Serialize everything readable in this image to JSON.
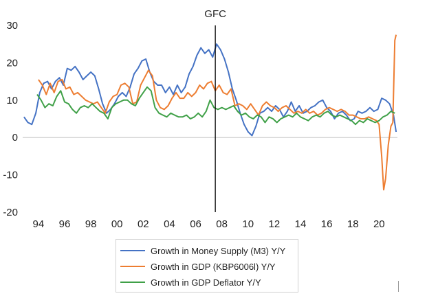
{
  "chart_data": {
    "type": "line",
    "title": "",
    "xlabel": "",
    "ylabel": "",
    "ylim": [
      -20,
      30
    ],
    "yticks": [
      -20,
      -10,
      0,
      10,
      20,
      30
    ],
    "xlim": [
      1992.8,
      2021.4
    ],
    "xticks": [
      {
        "value": 1994,
        "label": "94"
      },
      {
        "value": 1996,
        "label": "96"
      },
      {
        "value": 1998,
        "label": "98"
      },
      {
        "value": 2000,
        "label": "00"
      },
      {
        "value": 2002,
        "label": "02"
      },
      {
        "value": 2004,
        "label": "04"
      },
      {
        "value": 2006,
        "label": "06"
      },
      {
        "value": 2008,
        "label": "08"
      },
      {
        "value": 2010,
        "label": "10"
      },
      {
        "value": 2012,
        "label": "12"
      },
      {
        "value": 2014,
        "label": "14"
      },
      {
        "value": 2016,
        "label": "16"
      },
      {
        "value": 2018,
        "label": "18"
      },
      {
        "value": 2020,
        "label": "20"
      }
    ],
    "grid": false,
    "legend_position": "bottom-center",
    "annotations": [
      {
        "label": "GFC",
        "x": 2007.5
      }
    ],
    "series": [
      {
        "name": "Growth in Money Supply (M3) Y/Y",
        "color": "#4472c4",
        "points": [
          [
            1992.9,
            5.5
          ],
          [
            1993.2,
            4.0
          ],
          [
            1993.5,
            3.5
          ],
          [
            1993.8,
            6.5
          ],
          [
            1994.1,
            12.0
          ],
          [
            1994.4,
            14.5
          ],
          [
            1994.7,
            15.0
          ],
          [
            1995.0,
            13.0
          ],
          [
            1995.3,
            15.0
          ],
          [
            1995.6,
            16.0
          ],
          [
            1995.9,
            14.0
          ],
          [
            1996.2,
            18.5
          ],
          [
            1996.5,
            18.0
          ],
          [
            1996.8,
            19.0
          ],
          [
            1997.1,
            17.5
          ],
          [
            1997.4,
            15.5
          ],
          [
            1997.7,
            16.5
          ],
          [
            1998.0,
            17.5
          ],
          [
            1998.3,
            16.5
          ],
          [
            1998.6,
            13.0
          ],
          [
            1998.9,
            9.0
          ],
          [
            1999.2,
            6.5
          ],
          [
            1999.5,
            7.5
          ],
          [
            1999.8,
            9.0
          ],
          [
            2000.1,
            11.0
          ],
          [
            2000.4,
            12.0
          ],
          [
            2000.7,
            11.0
          ],
          [
            2001.0,
            13.5
          ],
          [
            2001.3,
            17.0
          ],
          [
            2001.6,
            18.5
          ],
          [
            2001.9,
            20.5
          ],
          [
            2002.2,
            21.0
          ],
          [
            2002.5,
            17.5
          ],
          [
            2002.8,
            15.0
          ],
          [
            2003.1,
            14.0
          ],
          [
            2003.4,
            14.0
          ],
          [
            2003.7,
            12.0
          ],
          [
            2004.0,
            13.5
          ],
          [
            2004.3,
            11.5
          ],
          [
            2004.6,
            14.0
          ],
          [
            2004.9,
            12.0
          ],
          [
            2005.2,
            13.5
          ],
          [
            2005.5,
            17.0
          ],
          [
            2005.8,
            19.0
          ],
          [
            2006.1,
            22.0
          ],
          [
            2006.4,
            24.0
          ],
          [
            2006.7,
            22.5
          ],
          [
            2007.0,
            23.5
          ],
          [
            2007.3,
            21.5
          ],
          [
            2007.6,
            25.0
          ],
          [
            2007.9,
            23.5
          ],
          [
            2008.2,
            21.0
          ],
          [
            2008.5,
            17.5
          ],
          [
            2008.8,
            13.0
          ],
          [
            2009.1,
            10.0
          ],
          [
            2009.4,
            6.5
          ],
          [
            2009.7,
            3.5
          ],
          [
            2010.0,
            1.5
          ],
          [
            2010.3,
            0.5
          ],
          [
            2010.6,
            3.0
          ],
          [
            2010.9,
            6.5
          ],
          [
            2011.2,
            7.0
          ],
          [
            2011.5,
            8.0
          ],
          [
            2011.8,
            7.0
          ],
          [
            2012.1,
            8.5
          ],
          [
            2012.4,
            7.5
          ],
          [
            2012.7,
            5.5
          ],
          [
            2013.0,
            7.0
          ],
          [
            2013.3,
            9.5
          ],
          [
            2013.6,
            7.0
          ],
          [
            2013.9,
            8.5
          ],
          [
            2014.2,
            6.5
          ],
          [
            2014.5,
            7.0
          ],
          [
            2014.8,
            8.0
          ],
          [
            2015.1,
            8.5
          ],
          [
            2015.4,
            9.5
          ],
          [
            2015.7,
            10.0
          ],
          [
            2016.0,
            8.0
          ],
          [
            2016.3,
            7.0
          ],
          [
            2016.6,
            5.0
          ],
          [
            2016.9,
            6.5
          ],
          [
            2017.2,
            7.0
          ],
          [
            2017.5,
            6.0
          ],
          [
            2017.8,
            4.5
          ],
          [
            2018.1,
            5.0
          ],
          [
            2018.4,
            7.0
          ],
          [
            2018.7,
            6.5
          ],
          [
            2019.0,
            7.0
          ],
          [
            2019.3,
            8.0
          ],
          [
            2019.6,
            7.0
          ],
          [
            2019.9,
            7.5
          ],
          [
            2020.2,
            10.5
          ],
          [
            2020.5,
            10.0
          ],
          [
            2020.8,
            9.0
          ],
          [
            2021.1,
            6.0
          ],
          [
            2021.3,
            1.5
          ]
        ]
      },
      {
        "name": "Growth in GDP (KBP6006l) Y/Y",
        "color": "#ed7d31",
        "points": [
          [
            1994.0,
            15.5
          ],
          [
            1994.3,
            14.0
          ],
          [
            1994.6,
            11.5
          ],
          [
            1994.9,
            14.5
          ],
          [
            1995.2,
            12.0
          ],
          [
            1995.5,
            15.0
          ],
          [
            1995.8,
            15.5
          ],
          [
            1996.1,
            13.0
          ],
          [
            1996.4,
            13.5
          ],
          [
            1996.7,
            11.5
          ],
          [
            1997.0,
            12.0
          ],
          [
            1997.3,
            11.0
          ],
          [
            1997.6,
            10.0
          ],
          [
            1997.9,
            9.5
          ],
          [
            1998.2,
            9.0
          ],
          [
            1998.5,
            9.5
          ],
          [
            1998.8,
            8.0
          ],
          [
            1999.1,
            6.5
          ],
          [
            1999.4,
            9.5
          ],
          [
            1999.7,
            11.0
          ],
          [
            2000.0,
            11.5
          ],
          [
            2000.3,
            14.0
          ],
          [
            2000.6,
            14.5
          ],
          [
            2000.9,
            13.5
          ],
          [
            2001.2,
            9.0
          ],
          [
            2001.5,
            9.5
          ],
          [
            2001.8,
            14.0
          ],
          [
            2002.1,
            16.0
          ],
          [
            2002.4,
            18.0
          ],
          [
            2002.7,
            16.5
          ],
          [
            2003.0,
            10.0
          ],
          [
            2003.3,
            8.0
          ],
          [
            2003.6,
            7.5
          ],
          [
            2003.9,
            8.5
          ],
          [
            2004.2,
            10.5
          ],
          [
            2004.5,
            12.0
          ],
          [
            2004.8,
            10.5
          ],
          [
            2005.1,
            10.5
          ],
          [
            2005.4,
            12.0
          ],
          [
            2005.7,
            11.0
          ],
          [
            2006.0,
            12.0
          ],
          [
            2006.3,
            14.0
          ],
          [
            2006.6,
            13.0
          ],
          [
            2006.9,
            14.5
          ],
          [
            2007.2,
            15.0
          ],
          [
            2007.5,
            12.5
          ],
          [
            2007.8,
            14.0
          ],
          [
            2008.1,
            12.0
          ],
          [
            2008.4,
            11.5
          ],
          [
            2008.7,
            13.0
          ],
          [
            2009.0,
            8.5
          ],
          [
            2009.3,
            9.0
          ],
          [
            2009.6,
            8.5
          ],
          [
            2009.9,
            7.5
          ],
          [
            2010.2,
            9.0
          ],
          [
            2010.5,
            7.5
          ],
          [
            2010.8,
            6.0
          ],
          [
            2011.1,
            8.5
          ],
          [
            2011.4,
            9.5
          ],
          [
            2011.7,
            8.5
          ],
          [
            2012.0,
            8.0
          ],
          [
            2012.3,
            7.0
          ],
          [
            2012.6,
            8.0
          ],
          [
            2012.9,
            8.5
          ],
          [
            2013.2,
            7.5
          ],
          [
            2013.5,
            6.5
          ],
          [
            2013.8,
            7.0
          ],
          [
            2014.1,
            6.5
          ],
          [
            2014.4,
            7.5
          ],
          [
            2014.7,
            6.5
          ],
          [
            2015.0,
            7.0
          ],
          [
            2015.3,
            6.0
          ],
          [
            2015.6,
            6.5
          ],
          [
            2015.9,
            7.5
          ],
          [
            2016.2,
            8.0
          ],
          [
            2016.5,
            7.5
          ],
          [
            2016.8,
            7.0
          ],
          [
            2017.1,
            7.5
          ],
          [
            2017.4,
            7.0
          ],
          [
            2017.7,
            6.0
          ],
          [
            2018.0,
            6.0
          ],
          [
            2018.3,
            5.5
          ],
          [
            2018.6,
            5.0
          ],
          [
            2018.9,
            5.0
          ],
          [
            2019.2,
            5.5
          ],
          [
            2019.5,
            5.0
          ],
          [
            2019.8,
            4.5
          ],
          [
            2020.0,
            3.5
          ],
          [
            2020.2,
            -5.0
          ],
          [
            2020.35,
            -14.0
          ],
          [
            2020.5,
            -11.0
          ],
          [
            2020.7,
            -2.0
          ],
          [
            2020.9,
            3.0
          ],
          [
            2021.05,
            4.0
          ],
          [
            2021.2,
            26.0
          ],
          [
            2021.3,
            27.5
          ]
        ]
      },
      {
        "name": "Growth in GDP Deflator Y/Y",
        "color": "#3fa047",
        "points": [
          [
            1993.9,
            11.5
          ],
          [
            1994.2,
            10.0
          ],
          [
            1994.5,
            8.0
          ],
          [
            1994.8,
            9.0
          ],
          [
            1995.1,
            8.5
          ],
          [
            1995.4,
            11.0
          ],
          [
            1995.7,
            12.5
          ],
          [
            1996.0,
            9.5
          ],
          [
            1996.3,
            9.0
          ],
          [
            1996.6,
            7.5
          ],
          [
            1996.9,
            6.5
          ],
          [
            1997.2,
            8.0
          ],
          [
            1997.5,
            8.5
          ],
          [
            1997.8,
            8.0
          ],
          [
            1998.1,
            9.0
          ],
          [
            1998.4,
            8.0
          ],
          [
            1998.7,
            7.0
          ],
          [
            1999.0,
            6.5
          ],
          [
            1999.3,
            5.0
          ],
          [
            1999.6,
            8.0
          ],
          [
            1999.9,
            9.0
          ],
          [
            2000.2,
            9.5
          ],
          [
            2000.5,
            10.0
          ],
          [
            2000.8,
            10.0
          ],
          [
            2001.1,
            9.0
          ],
          [
            2001.4,
            8.5
          ],
          [
            2001.7,
            10.5
          ],
          [
            2002.0,
            12.0
          ],
          [
            2002.3,
            13.5
          ],
          [
            2002.6,
            12.5
          ],
          [
            2002.9,
            8.0
          ],
          [
            2003.2,
            6.5
          ],
          [
            2003.5,
            6.0
          ],
          [
            2003.8,
            5.5
          ],
          [
            2004.1,
            6.5
          ],
          [
            2004.4,
            6.0
          ],
          [
            2004.7,
            5.5
          ],
          [
            2005.0,
            5.5
          ],
          [
            2005.3,
            6.0
          ],
          [
            2005.6,
            5.0
          ],
          [
            2005.9,
            5.5
          ],
          [
            2006.2,
            6.5
          ],
          [
            2006.5,
            5.5
          ],
          [
            2006.8,
            7.0
          ],
          [
            2007.1,
            10.0
          ],
          [
            2007.4,
            8.0
          ],
          [
            2007.7,
            7.5
          ],
          [
            2008.0,
            8.0
          ],
          [
            2008.3,
            7.5
          ],
          [
            2008.6,
            8.0
          ],
          [
            2008.9,
            8.5
          ],
          [
            2009.2,
            7.0
          ],
          [
            2009.5,
            6.0
          ],
          [
            2009.8,
            6.5
          ],
          [
            2010.1,
            5.5
          ],
          [
            2010.4,
            5.0
          ],
          [
            2010.7,
            6.0
          ],
          [
            2011.0,
            5.5
          ],
          [
            2011.3,
            4.0
          ],
          [
            2011.6,
            5.5
          ],
          [
            2011.9,
            5.0
          ],
          [
            2012.2,
            4.0
          ],
          [
            2012.5,
            5.0
          ],
          [
            2012.8,
            5.5
          ],
          [
            2013.1,
            6.0
          ],
          [
            2013.4,
            5.5
          ],
          [
            2013.7,
            6.5
          ],
          [
            2014.0,
            5.5
          ],
          [
            2014.3,
            5.0
          ],
          [
            2014.6,
            4.5
          ],
          [
            2014.9,
            5.5
          ],
          [
            2015.2,
            6.0
          ],
          [
            2015.5,
            5.5
          ],
          [
            2015.8,
            6.5
          ],
          [
            2016.1,
            7.0
          ],
          [
            2016.4,
            6.0
          ],
          [
            2016.7,
            5.5
          ],
          [
            2017.0,
            6.0
          ],
          [
            2017.3,
            5.5
          ],
          [
            2017.6,
            5.0
          ],
          [
            2017.9,
            4.5
          ],
          [
            2018.2,
            3.5
          ],
          [
            2018.5,
            4.5
          ],
          [
            2018.8,
            4.0
          ],
          [
            2019.1,
            5.0
          ],
          [
            2019.4,
            4.5
          ],
          [
            2019.7,
            4.0
          ],
          [
            2020.0,
            4.5
          ],
          [
            2020.3,
            5.5
          ],
          [
            2020.6,
            6.0
          ],
          [
            2020.9,
            7.0
          ],
          [
            2021.2,
            6.5
          ]
        ]
      }
    ]
  }
}
